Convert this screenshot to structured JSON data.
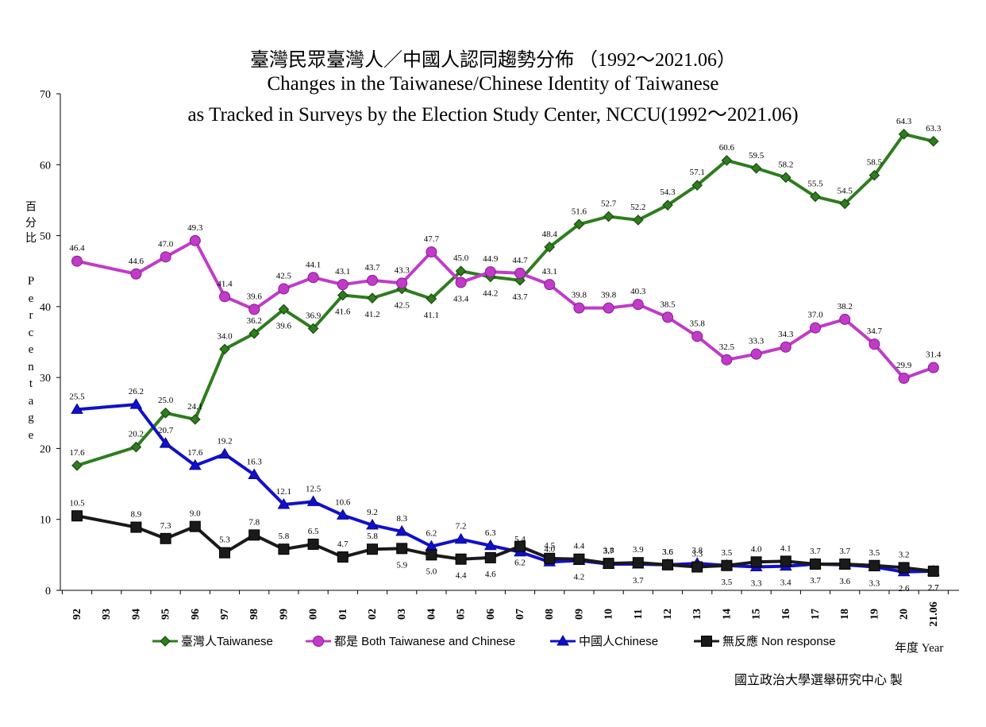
{
  "chart_data": {
    "type": "line",
    "title": "臺灣民眾臺灣人／中國人認同趨勢分佈 （1992～2021.06）",
    "subtitle_line1": "Changes in the Taiwanese/Chinese Identity of Taiwanese",
    "subtitle_line2": "as Tracked in Surveys by the Election Study Center, NCCU(1992～2021.06)",
    "ylabel_zh": "百分比",
    "ylabel_en": "Percentage",
    "xlabel": "年度 Year",
    "ylim": [
      0,
      70
    ],
    "yticks": [
      "0",
      "10",
      "20",
      "30",
      "40",
      "50",
      "60",
      "70"
    ],
    "categories": [
      "92",
      "93",
      "94",
      "95",
      "96",
      "97",
      "98",
      "99",
      "00",
      "01",
      "02",
      "03",
      "04",
      "05",
      "06",
      "07",
      "08",
      "09",
      "10",
      "11",
      "12",
      "13",
      "14",
      "15",
      "16",
      "17",
      "18",
      "19",
      "20",
      "21.06"
    ],
    "legend_position": "bottom",
    "series": [
      {
        "name": "臺灣人Taiwanese",
        "color": "#2e7d1e",
        "marker": "diamond",
        "values": [
          17.6,
          null,
          20.2,
          25.0,
          24.1,
          34.0,
          36.2,
          39.6,
          36.9,
          41.6,
          41.2,
          42.5,
          41.1,
          45.0,
          44.2,
          43.7,
          48.4,
          51.6,
          52.7,
          52.2,
          54.3,
          57.1,
          60.6,
          59.5,
          58.2,
          55.5,
          54.5,
          58.5,
          64.3,
          63.3
        ],
        "labels": [
          "17.6",
          null,
          "20.2",
          "25.0",
          "24.1",
          "34.0",
          "36.2",
          "39.6",
          "36.9",
          "41.6",
          "41.2",
          "42.5",
          "41.1",
          "45.0",
          "44.2",
          "43.7",
          "48.4",
          "51.6",
          "52.7",
          "52.2",
          "54.3",
          "57.1",
          "60.6",
          "59.5",
          "58.2",
          "55.5",
          "54.5",
          "58.5",
          "64.3",
          "63.3"
        ]
      },
      {
        "name": "都是 Both Taiwanese and Chinese",
        "color": "#c03cc8",
        "marker": "circle",
        "values": [
          46.4,
          null,
          44.6,
          47.0,
          49.3,
          41.4,
          39.6,
          42.5,
          44.1,
          43.1,
          43.7,
          43.3,
          47.7,
          43.4,
          44.9,
          44.7,
          43.1,
          39.8,
          39.8,
          40.3,
          38.5,
          35.8,
          32.5,
          33.3,
          34.3,
          37.0,
          38.2,
          34.7,
          29.9,
          31.4
        ],
        "labels": [
          "46.4",
          null,
          "44.6",
          "47.0",
          "49.3",
          "41.4",
          "39.6",
          "42.5",
          "44.1",
          "43.1",
          "43.7",
          "43.3",
          "47.7",
          "43.4",
          "44.9",
          "44.7",
          "43.1",
          "39.8",
          "39.8",
          "40.3",
          "38.5",
          "35.8",
          "32.5",
          "33.3",
          "34.3",
          "37.0",
          "38.2",
          "34.7",
          "29.9",
          "31.4"
        ]
      },
      {
        "name": "中國人Chinese",
        "color": "#1010cc",
        "marker": "triangle",
        "values": [
          25.5,
          null,
          26.2,
          20.7,
          17.6,
          19.2,
          16.3,
          12.1,
          12.5,
          10.6,
          9.2,
          8.3,
          6.2,
          7.2,
          6.3,
          5.4,
          4.0,
          4.2,
          3.7,
          3.7,
          3.6,
          3.8,
          3.5,
          3.3,
          3.4,
          3.7,
          3.6,
          3.3,
          2.6,
          2.7
        ],
        "labels": [
          "25.5",
          null,
          "26.2",
          "20.7",
          "17.6",
          "19.2",
          "16.3",
          "12.1",
          "12.5",
          "10.6",
          "9.2",
          "8.3",
          "6.2",
          "7.2",
          "6.3",
          "5.4",
          "4.0",
          "4.2",
          "3.7",
          "3.7",
          "3.6",
          "3.8",
          "3.5",
          "3.3",
          "3.4",
          "3.7",
          "3.6",
          "3.3",
          "2.6",
          "2.7"
        ]
      },
      {
        "name": "無反應 Non response",
        "color": "#1a1a1a",
        "marker": "square",
        "values": [
          10.5,
          null,
          8.9,
          7.3,
          9.0,
          5.3,
          7.8,
          5.8,
          6.5,
          4.7,
          5.8,
          5.9,
          5.0,
          4.4,
          4.6,
          6.2,
          4.5,
          4.4,
          3.8,
          3.9,
          3.6,
          3.3,
          3.5,
          4.0,
          4.1,
          3.7,
          3.7,
          3.5,
          3.2,
          2.7
        ],
        "labels": [
          "10.5",
          null,
          "8.9",
          "7.3",
          "9.0",
          "5.3",
          "7.8",
          "5.8",
          "6.5",
          "4.7",
          "5.8",
          "5.9",
          "5.0",
          "4.4",
          "4.6",
          "6.2",
          "4.5",
          "4.4",
          "3.8",
          "3.9",
          "3.6",
          "3.3",
          "3.5",
          "4.0",
          "4.1",
          "3.7",
          "3.7",
          "3.5",
          "3.2",
          "2.7"
        ]
      }
    ],
    "credit": "國立政治大學選舉研究中心 製"
  }
}
